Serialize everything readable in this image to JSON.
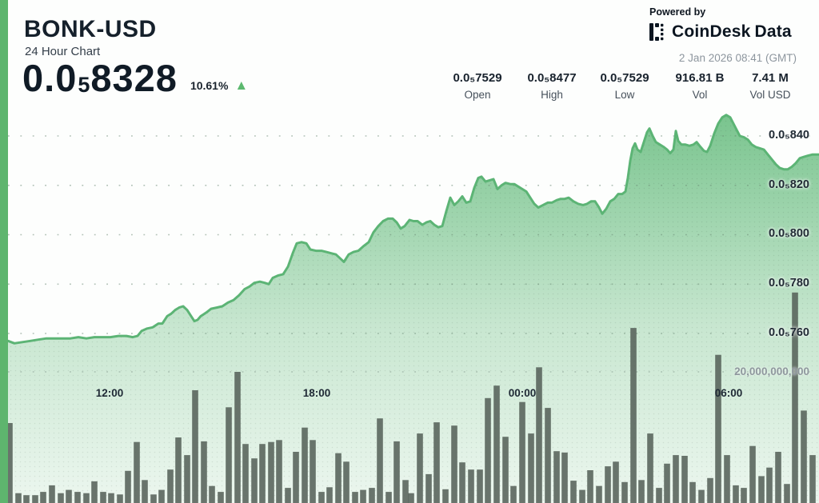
{
  "header": {
    "symbol": "BONK-USD",
    "subtitle": "24 Hour Chart",
    "price": {
      "prefix": "0.0",
      "subscript": "5",
      "digits": "8328"
    },
    "change_percent": "10.61%",
    "change_direction": "up",
    "up_triangle": "▲",
    "powered_by": "Powered by",
    "provider_primary": "CoinDesk",
    "provider_secondary": "Data",
    "timestamp": "2 Jan 2026 08:41 (GMT)"
  },
  "stats": {
    "items": [
      {
        "value": "0.0₅7529",
        "label": "Open"
      },
      {
        "value": "0.0₅8477",
        "label": "High"
      },
      {
        "value": "0.0₅7529",
        "label": "Low"
      },
      {
        "value": "916.81 B",
        "label": "Vol"
      },
      {
        "value": "7.41 M",
        "label": "Vol USD"
      }
    ]
  },
  "colors": {
    "accent_green": "#5eb56e",
    "line_green": "#5cb475",
    "fill_green": "#57b571",
    "triangle_green": "#5cb96f",
    "volume_bar": "#57625a",
    "title_dark": "#15202b",
    "timestamp_gray": "#8d969e",
    "axis_gray": "#8e979d"
  },
  "chart_data": {
    "type": "area",
    "title": "BONK-USD 24 Hour Chart",
    "grid": "dotted",
    "legend": "none",
    "ohlc": {
      "open": "0.0₅7529",
      "high": "0.0₅8477",
      "low": "0.0₅7529",
      "close": "0.0₅8328"
    },
    "volume_total": "916.81 B",
    "volume_usd_total": "7.41 M",
    "y_axis": {
      "ticks": [
        "0.0₅840",
        "0.0₅820",
        "0.0₅800",
        "0.0₅780",
        "0.0₅760"
      ],
      "tick_values_e8": [
        840,
        820,
        800,
        780,
        760
      ],
      "unit": "USD ×10⁻⁸",
      "position": "right-inside"
    },
    "x_axis": {
      "ticks": [
        "12:00",
        "18:00",
        "00:00",
        "06:00"
      ]
    },
    "volume_axis": {
      "tick_label": "20,000,000,000",
      "tick_value_B": 20
    },
    "price_series_e8": [
      [
        10,
        757
      ],
      [
        18,
        756
      ],
      [
        28,
        756.5
      ],
      [
        38,
        757
      ],
      [
        48,
        757.5
      ],
      [
        58,
        758
      ],
      [
        68,
        758
      ],
      [
        78,
        758
      ],
      [
        88,
        758
      ],
      [
        98,
        758.5
      ],
      [
        108,
        758
      ],
      [
        118,
        758.5
      ],
      [
        128,
        758.5
      ],
      [
        138,
        758.5
      ],
      [
        148,
        759
      ],
      [
        158,
        759
      ],
      [
        166,
        758.5
      ],
      [
        172,
        759
      ],
      [
        177,
        761
      ],
      [
        184,
        762
      ],
      [
        191,
        762.5
      ],
      [
        198,
        764
      ],
      [
        203,
        764
      ],
      [
        209,
        767
      ],
      [
        214,
        768
      ],
      [
        219,
        769.5
      ],
      [
        224,
        770.5
      ],
      [
        229,
        771
      ],
      [
        234,
        769.5
      ],
      [
        239,
        767
      ],
      [
        243,
        765
      ],
      [
        247,
        765.5
      ],
      [
        251,
        767
      ],
      [
        258,
        768.5
      ],
      [
        264,
        770
      ],
      [
        271,
        770.5
      ],
      [
        278,
        771
      ],
      [
        285,
        772.5
      ],
      [
        292,
        773.5
      ],
      [
        299,
        775.5
      ],
      [
        306,
        778
      ],
      [
        312,
        779
      ],
      [
        318,
        780.5
      ],
      [
        325,
        781
      ],
      [
        331,
        780.5
      ],
      [
        336,
        780
      ],
      [
        341,
        782.5
      ],
      [
        348,
        783.5
      ],
      [
        354,
        784
      ],
      [
        360,
        787
      ],
      [
        366,
        792.5
      ],
      [
        371,
        796.5
      ],
      [
        377,
        797
      ],
      [
        383,
        796.5
      ],
      [
        388,
        794
      ],
      [
        395,
        793.5
      ],
      [
        402,
        793.5
      ],
      [
        408,
        793
      ],
      [
        414,
        792.5
      ],
      [
        420,
        792
      ],
      [
        425,
        790.5
      ],
      [
        430,
        789
      ],
      [
        436,
        792
      ],
      [
        442,
        793
      ],
      [
        448,
        793.5
      ],
      [
        455,
        795.5
      ],
      [
        461,
        797
      ],
      [
        467,
        801
      ],
      [
        473,
        803.5
      ],
      [
        479,
        805.5
      ],
      [
        485,
        806.5
      ],
      [
        491,
        806.5
      ],
      [
        496,
        805
      ],
      [
        501,
        802.5
      ],
      [
        506,
        803.5
      ],
      [
        512,
        806
      ],
      [
        517,
        805.5
      ],
      [
        522,
        805.5
      ],
      [
        528,
        804
      ],
      [
        533,
        805
      ],
      [
        538,
        805.5
      ],
      [
        543,
        804
      ],
      [
        548,
        803
      ],
      [
        553,
        803.5
      ],
      [
        558,
        809.5
      ],
      [
        563,
        815
      ],
      [
        568,
        812
      ],
      [
        573,
        813.5
      ],
      [
        578,
        815.5
      ],
      [
        583,
        813
      ],
      [
        588,
        813.5
      ],
      [
        593,
        819
      ],
      [
        598,
        823
      ],
      [
        602,
        823.5
      ],
      [
        607,
        821.5
      ],
      [
        612,
        822
      ],
      [
        617,
        822.5
      ],
      [
        622,
        818.5
      ],
      [
        627,
        820
      ],
      [
        632,
        821
      ],
      [
        638,
        820.5
      ],
      [
        643,
        820.5
      ],
      [
        648,
        819.5
      ],
      [
        653,
        818.5
      ],
      [
        658,
        817.5
      ],
      [
        663,
        815
      ],
      [
        668,
        812.5
      ],
      [
        673,
        811
      ],
      [
        679,
        812
      ],
      [
        685,
        813
      ],
      [
        690,
        813
      ],
      [
        696,
        814
      ],
      [
        701,
        814.5
      ],
      [
        706,
        814.5
      ],
      [
        711,
        815
      ],
      [
        717,
        813.5
      ],
      [
        723,
        812.5
      ],
      [
        729,
        812
      ],
      [
        734,
        812.5
      ],
      [
        739,
        813.5
      ],
      [
        744,
        813.5
      ],
      [
        749,
        811
      ],
      [
        753,
        808.5
      ],
      [
        758,
        810.5
      ],
      [
        763,
        813.5
      ],
      [
        768,
        814.5
      ],
      [
        773,
        816.5
      ],
      [
        778,
        816.5
      ],
      [
        782,
        817.5
      ],
      [
        785,
        823
      ],
      [
        788,
        830
      ],
      [
        791,
        835
      ],
      [
        794,
        837
      ],
      [
        797,
        834.5
      ],
      [
        801,
        833.5
      ],
      [
        805,
        837.5
      ],
      [
        809,
        841.5
      ],
      [
        812,
        843
      ],
      [
        816,
        840
      ],
      [
        820,
        837.5
      ],
      [
        825,
        836.5
      ],
      [
        830,
        835.5
      ],
      [
        834,
        834.5
      ],
      [
        838,
        833
      ],
      [
        842,
        834.5
      ],
      [
        845,
        842
      ],
      [
        848,
        838
      ],
      [
        852,
        836.5
      ],
      [
        857,
        836.5
      ],
      [
        862,
        836
      ],
      [
        867,
        836.5
      ],
      [
        871,
        837.5
      ],
      [
        876,
        835.5
      ],
      [
        880,
        834
      ],
      [
        884,
        833.5
      ],
      [
        888,
        836
      ],
      [
        893,
        841
      ],
      [
        898,
        845
      ],
      [
        903,
        847.5
      ],
      [
        908,
        848.5
      ],
      [
        913,
        847.5
      ],
      [
        917,
        845
      ],
      [
        921,
        842.5
      ],
      [
        925,
        840
      ],
      [
        930,
        839.5
      ],
      [
        935,
        838.5
      ],
      [
        940,
        836.5
      ],
      [
        945,
        835.5
      ],
      [
        950,
        835
      ],
      [
        955,
        834.5
      ],
      [
        960,
        832.5
      ],
      [
        965,
        830.5
      ],
      [
        970,
        828.5
      ],
      [
        975,
        827
      ],
      [
        980,
        826.5
      ],
      [
        985,
        826.5
      ],
      [
        990,
        827.5
      ],
      [
        995,
        829
      ],
      [
        1000,
        831
      ],
      [
        1005,
        831.5
      ],
      [
        1010,
        832
      ],
      [
        1016,
        832.5
      ],
      [
        1024,
        832.5
      ]
    ],
    "volume_bars_B": [
      [
        12,
        12.2
      ],
      [
        23,
        1.5
      ],
      [
        33,
        1.2
      ],
      [
        44,
        1.2
      ],
      [
        54,
        1.7
      ],
      [
        65,
        2.7
      ],
      [
        76,
        1.5
      ],
      [
        86,
        2.0
      ],
      [
        97,
        1.7
      ],
      [
        108,
        1.5
      ],
      [
        118,
        3.3
      ],
      [
        129,
        1.7
      ],
      [
        139,
        1.5
      ],
      [
        150,
        1.3
      ],
      [
        160,
        4.9
      ],
      [
        171,
        9.3
      ],
      [
        181,
        3.5
      ],
      [
        192,
        1.3
      ],
      [
        202,
        2.0
      ],
      [
        213,
        5.1
      ],
      [
        223,
        10.0
      ],
      [
        234,
        7.3
      ],
      [
        244,
        17.2
      ],
      [
        255,
        9.4
      ],
      [
        265,
        2.6
      ],
      [
        276,
        1.7
      ],
      [
        286,
        14.6
      ],
      [
        297,
        20.0
      ],
      [
        307,
        9.0
      ],
      [
        318,
        6.8
      ],
      [
        328,
        9.0
      ],
      [
        339,
        9.3
      ],
      [
        349,
        9.6
      ],
      [
        360,
        2.3
      ],
      [
        370,
        7.8
      ],
      [
        381,
        11.5
      ],
      [
        391,
        9.6
      ],
      [
        402,
        1.7
      ],
      [
        412,
        2.4
      ],
      [
        423,
        7.6
      ],
      [
        433,
        6.3
      ],
      [
        444,
        1.7
      ],
      [
        454,
        2.0
      ],
      [
        465,
        2.3
      ],
      [
        475,
        12.9
      ],
      [
        486,
        1.7
      ],
      [
        496,
        9.4
      ],
      [
        507,
        3.5
      ],
      [
        514,
        1.5
      ],
      [
        525,
        10.6
      ],
      [
        536,
        4.4
      ],
      [
        546,
        12.3
      ],
      [
        557,
        2.1
      ],
      [
        568,
        11.8
      ],
      [
        578,
        6.2
      ],
      [
        589,
        5.1
      ],
      [
        600,
        5.1
      ],
      [
        610,
        16.0
      ],
      [
        621,
        17.9
      ],
      [
        632,
        10.1
      ],
      [
        642,
        2.6
      ],
      [
        653,
        15.4
      ],
      [
        664,
        10.6
      ],
      [
        674,
        20.7
      ],
      [
        685,
        14.5
      ],
      [
        696,
        7.9
      ],
      [
        706,
        7.7
      ],
      [
        717,
        3.4
      ],
      [
        728,
        2.0
      ],
      [
        738,
        5.0
      ],
      [
        749,
        2.6
      ],
      [
        760,
        5.6
      ],
      [
        770,
        6.3
      ],
      [
        781,
        3.2
      ],
      [
        792,
        26.7
      ],
      [
        802,
        3.5
      ],
      [
        813,
        10.6
      ],
      [
        824,
        2.3
      ],
      [
        834,
        6.0
      ],
      [
        845,
        7.3
      ],
      [
        856,
        7.2
      ],
      [
        866,
        3.2
      ],
      [
        877,
        2.0
      ],
      [
        888,
        3.8
      ],
      [
        898,
        22.6
      ],
      [
        909,
        7.3
      ],
      [
        920,
        2.7
      ],
      [
        930,
        2.3
      ],
      [
        941,
        8.7
      ],
      [
        952,
        4.1
      ],
      [
        962,
        5.4
      ],
      [
        973,
        7.8
      ],
      [
        984,
        2.9
      ],
      [
        994,
        32.1
      ],
      [
        1005,
        14.1
      ],
      [
        1016,
        7.3
      ]
    ]
  }
}
